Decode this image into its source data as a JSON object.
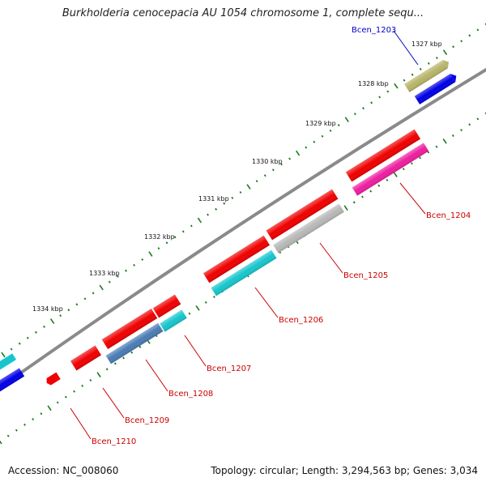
{
  "title": "Burkholderia cenocepacia AU 1054 chromosome 1, complete sequ...",
  "footer": {
    "accession": "Accession: NC_008060",
    "stats": "Topology: circular; Length: 3,294,563 bp; Genes: 3,034"
  },
  "ruler_ticks": [
    "1327 kbp",
    "1328 kbp",
    "1329 kbp",
    "1330 kbp",
    "1331 kbp",
    "1332 kbp",
    "1333 kbp",
    "1334 kbp"
  ],
  "gene_labels": [
    {
      "name": "Bcen_1203",
      "color": "#0000cc"
    },
    {
      "name": "Bcen_1204",
      "color": "#cc0000"
    },
    {
      "name": "Bcen_1205",
      "color": "#cc0000"
    },
    {
      "name": "Bcen_1206",
      "color": "#cc0000"
    },
    {
      "name": "Bcen_1207",
      "color": "#cc0000"
    },
    {
      "name": "Bcen_1208",
      "color": "#cc0000"
    },
    {
      "name": "Bcen_1209",
      "color": "#cc0000"
    },
    {
      "name": "Bcen_1210",
      "color": "#cc0000"
    }
  ],
  "feature_colors": {
    "cds_red": "#f00000",
    "blue": "#0000e6",
    "olive": "#b8b46a",
    "pink": "#ee1ea0",
    "gray": "#b8b8b8",
    "cyan": "#16c6cc",
    "steelblue": "#4a7cb4",
    "backbone": "#808080",
    "tick": "#1a7a1a"
  }
}
